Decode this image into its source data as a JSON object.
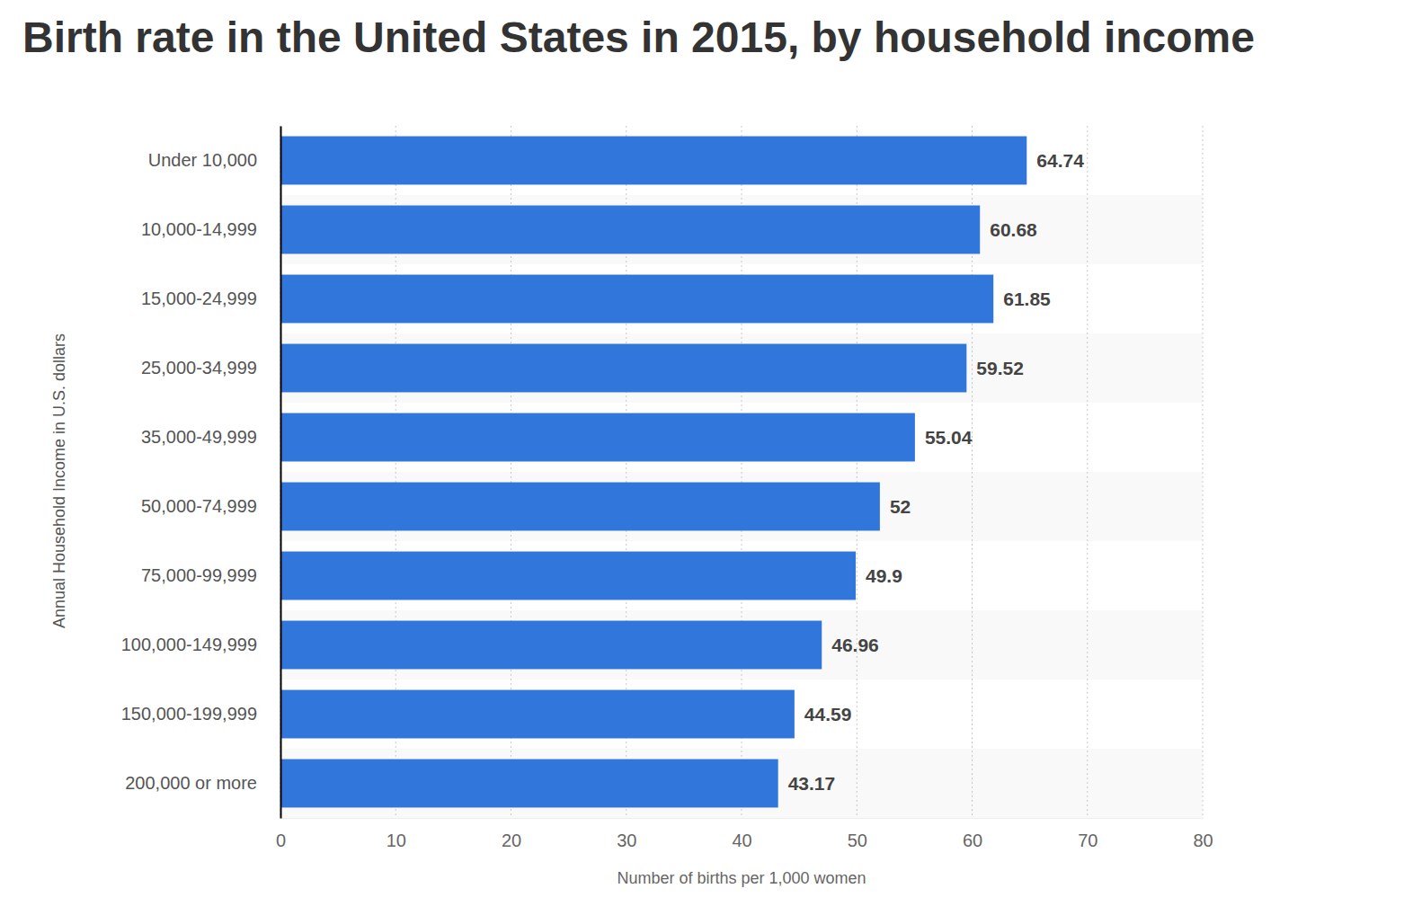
{
  "chart_data": {
    "type": "bar",
    "orientation": "horizontal",
    "title": "Birth rate in the United States in 2015, by household income",
    "x_label": "Number of births per 1,000 women",
    "y_label": "Annual Household Income in U.S. dollars",
    "categories": [
      "Under 10,000",
      "10,000-14,999",
      "15,000-24,999",
      "25,000-34,999",
      "35,000-49,999",
      "50,000-74,999",
      "75,000-99,999",
      "100,000-149,999",
      "150,000-199,999",
      "200,000 or more"
    ],
    "values": [
      64.74,
      60.68,
      61.85,
      59.52,
      55.04,
      52,
      49.9,
      46.96,
      44.59,
      43.17
    ],
    "color": "#3176db",
    "xlim": [
      0,
      80
    ],
    "xticks": [
      0,
      10,
      20,
      30,
      40,
      50,
      60,
      70,
      80
    ],
    "grid": true,
    "data_labels": true
  }
}
